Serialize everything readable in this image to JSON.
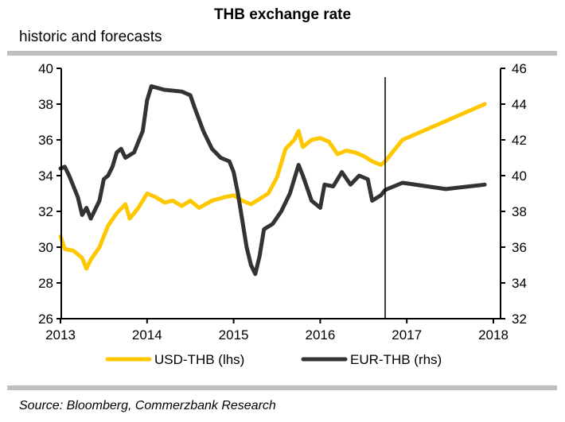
{
  "header": {
    "title": "THB exchange rate",
    "subtitle": "historic and forecasts"
  },
  "footer": {
    "source": "Source: Bloomberg, Commerzbank Research"
  },
  "colors": {
    "usd": "#ffc700",
    "eur": "#333333",
    "axis": "#000000",
    "rule": "#bfbfbf"
  },
  "chart_data": {
    "type": "line",
    "title": "THB exchange rate",
    "subtitle": "historic and forecasts",
    "xlabel": "",
    "ylabel_left": "",
    "ylabel_right": "",
    "xlim": [
      2013,
      2018
    ],
    "ylim_left": [
      26,
      40
    ],
    "ylim_right": [
      32,
      46
    ],
    "x_ticks": [
      "2013",
      "2014",
      "2015",
      "2016",
      "2017",
      "2018"
    ],
    "y_ticks_left": [
      "26",
      "28",
      "30",
      "32",
      "34",
      "36",
      "38",
      "40"
    ],
    "y_ticks_right": [
      "32",
      "34",
      "36",
      "38",
      "40",
      "42",
      "44",
      "46"
    ],
    "grid": false,
    "forecast_start": 2016.75,
    "legend_position": "bottom",
    "series": [
      {
        "name": "USD-THB (lhs)",
        "axis": "left",
        "x": [
          2013.0,
          2013.05,
          2013.15,
          2013.25,
          2013.3,
          2013.35,
          2013.45,
          2013.55,
          2013.65,
          2013.75,
          2013.8,
          2013.9,
          2014.0,
          2014.1,
          2014.2,
          2014.3,
          2014.4,
          2014.5,
          2014.6,
          2014.75,
          2014.9,
          2015.0,
          2015.1,
          2015.2,
          2015.3,
          2015.4,
          2015.5,
          2015.6,
          2015.7,
          2015.75,
          2015.8,
          2015.9,
          2016.0,
          2016.1,
          2016.2,
          2016.3,
          2016.4,
          2016.5,
          2016.6,
          2016.7,
          2016.75,
          2016.95,
          2017.9
        ],
        "values": [
          30.6,
          29.9,
          29.8,
          29.4,
          28.8,
          29.3,
          30.0,
          31.2,
          31.9,
          32.4,
          31.6,
          32.2,
          33.0,
          32.8,
          32.5,
          32.6,
          32.3,
          32.6,
          32.2,
          32.6,
          32.8,
          32.9,
          32.6,
          32.4,
          32.7,
          33.0,
          33.9,
          35.5,
          36.0,
          36.5,
          35.6,
          36.0,
          36.1,
          35.9,
          35.2,
          35.4,
          35.3,
          35.1,
          34.8,
          34.6,
          34.8,
          36.0,
          38.0
        ]
      },
      {
        "name": "EUR-THB (rhs)",
        "axis": "right",
        "x": [
          2013.0,
          2013.05,
          2013.1,
          2013.2,
          2013.25,
          2013.3,
          2013.35,
          2013.45,
          2013.5,
          2013.55,
          2013.6,
          2013.65,
          2013.7,
          2013.75,
          2013.85,
          2013.95,
          2014.0,
          2014.05,
          2014.2,
          2014.4,
          2014.5,
          2014.55,
          2014.65,
          2014.75,
          2014.85,
          2014.95,
          2015.0,
          2015.05,
          2015.1,
          2015.15,
          2015.2,
          2015.25,
          2015.3,
          2015.35,
          2015.45,
          2015.55,
          2015.65,
          2015.75,
          2015.8,
          2015.9,
          2016.0,
          2016.05,
          2016.15,
          2016.25,
          2016.35,
          2016.45,
          2016.55,
          2016.6,
          2016.7,
          2016.75,
          2016.95,
          2017.45,
          2017.9
        ],
        "values": [
          40.4,
          40.5,
          40.0,
          38.8,
          37.8,
          38.2,
          37.6,
          38.6,
          39.8,
          40.0,
          40.5,
          41.3,
          41.5,
          41.0,
          41.3,
          42.5,
          44.2,
          45.0,
          44.8,
          44.7,
          44.5,
          43.8,
          42.5,
          41.5,
          41.0,
          40.8,
          40.2,
          39.0,
          37.5,
          36.0,
          35.0,
          34.5,
          35.5,
          37.0,
          37.3,
          38.0,
          39.0,
          40.6,
          40.0,
          38.6,
          38.2,
          39.5,
          39.4,
          40.2,
          39.5,
          40.0,
          39.8,
          38.6,
          38.9,
          39.2,
          39.6,
          39.25,
          39.5
        ]
      }
    ]
  }
}
